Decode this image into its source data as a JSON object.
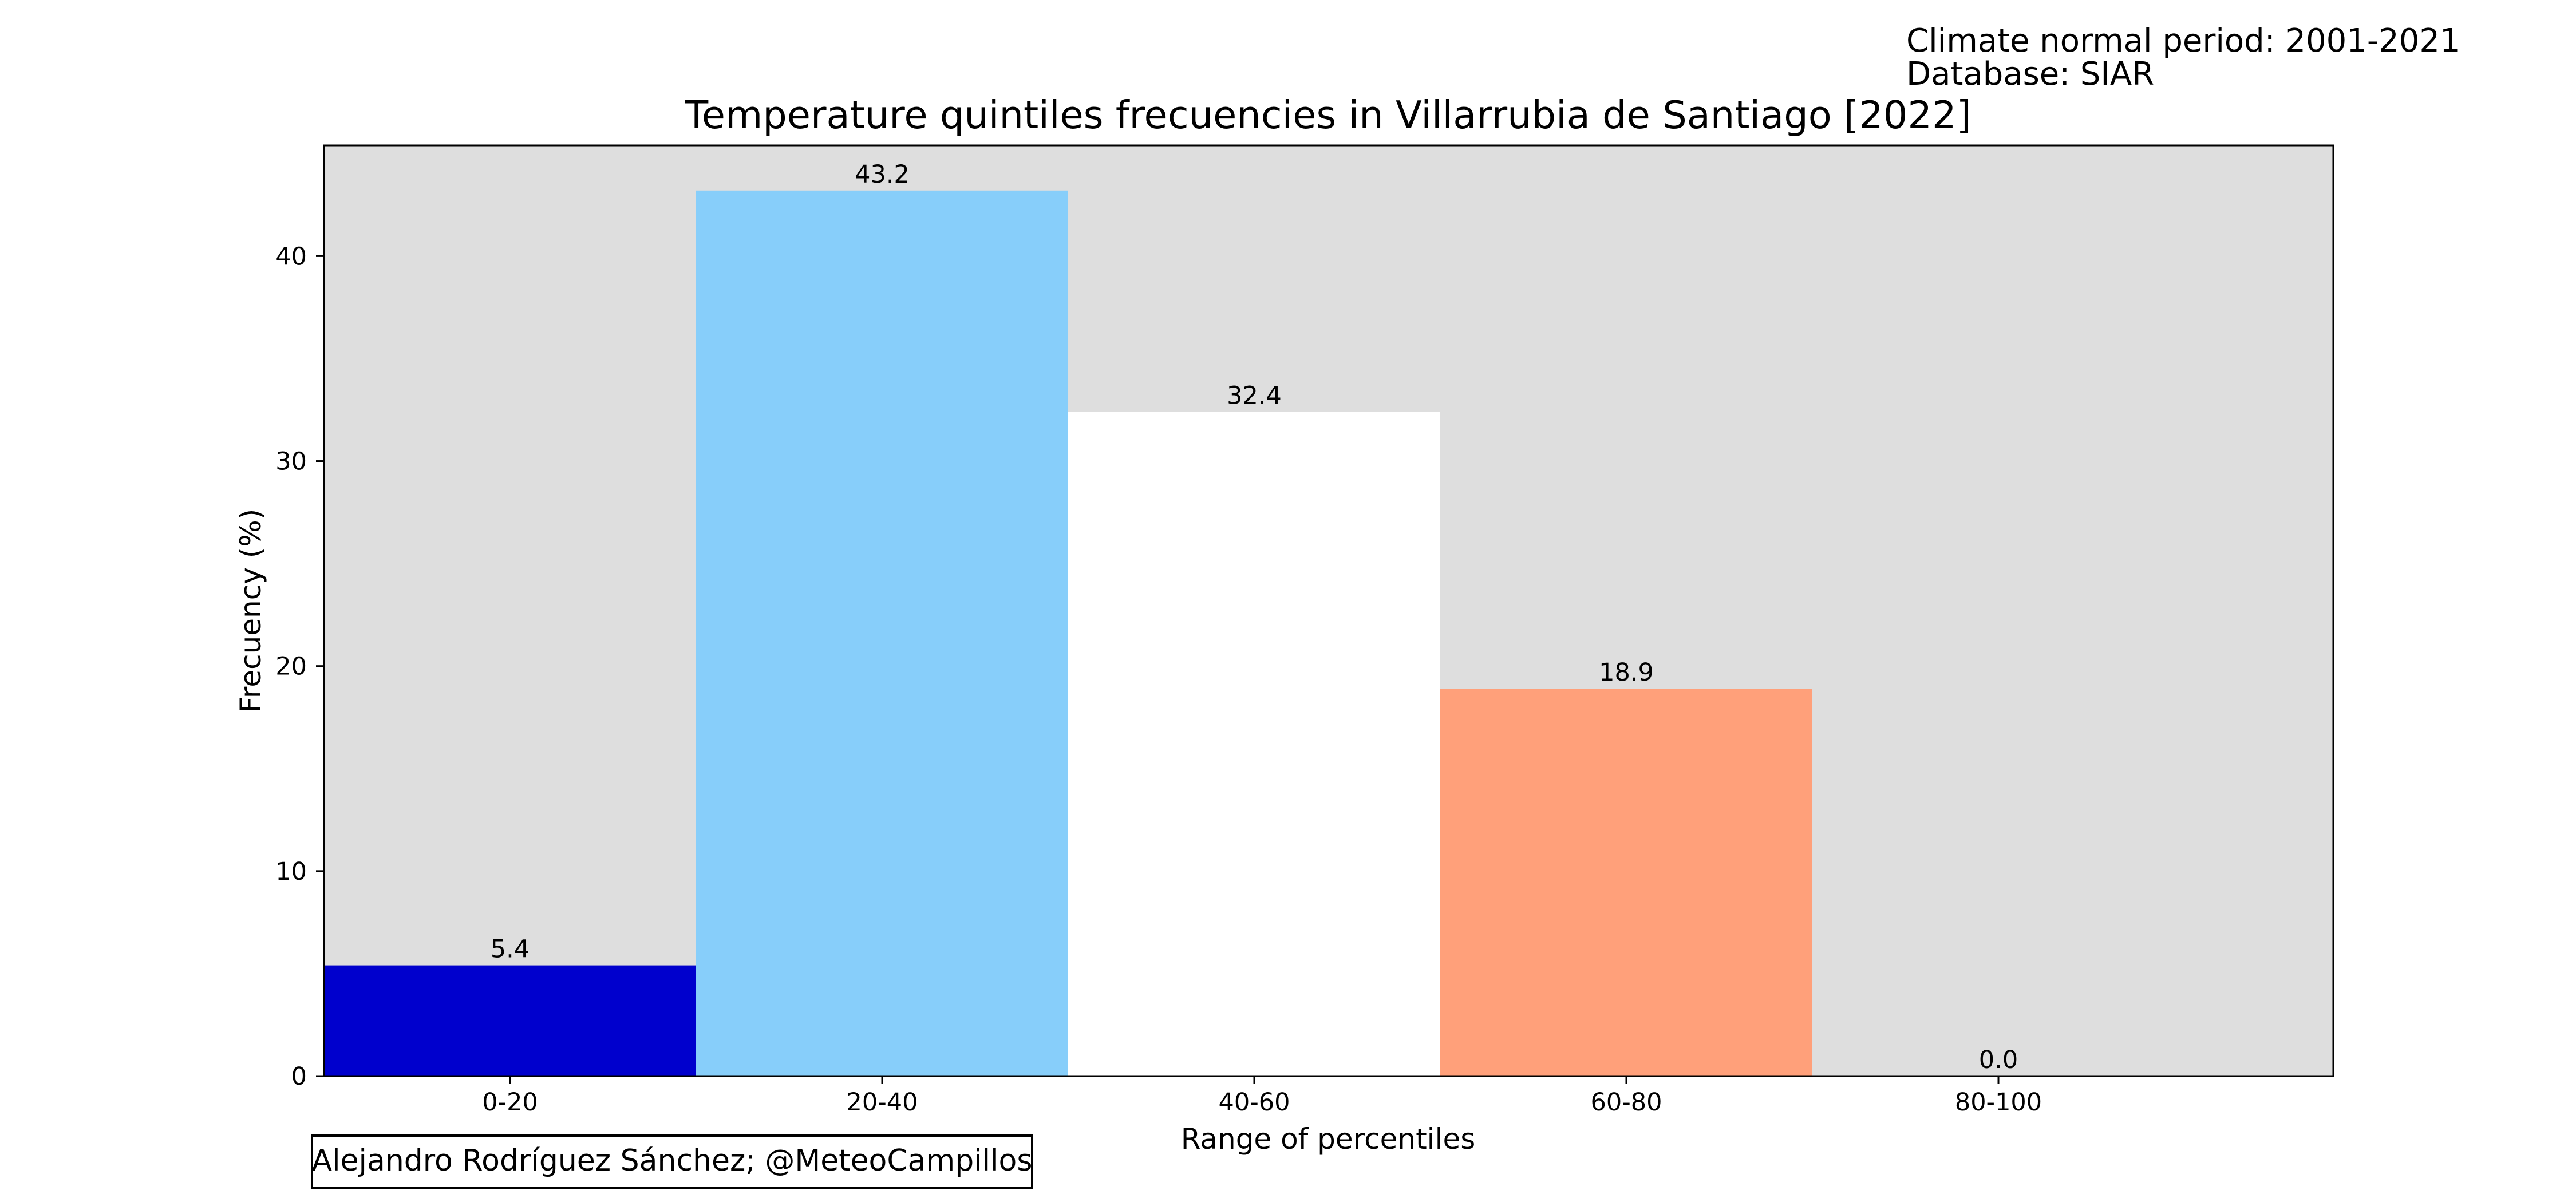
{
  "chart_data": {
    "type": "bar",
    "title": "Temperature quintiles frecuencies in Villarrubia de Santiago [2022]",
    "xlabel": "Range of percentiles",
    "ylabel": "Frecuency (%)",
    "categories": [
      "0-20",
      "20-40",
      "40-60",
      "60-80",
      "80-100"
    ],
    "values": [
      5.4,
      43.2,
      32.4,
      18.9,
      0.0
    ],
    "value_labels": [
      "5.4",
      "43.2",
      "32.4",
      "18.9",
      "0.0"
    ],
    "bar_colors": [
      "#0000cd",
      "#87cefa",
      "#ffffff",
      "#ffa07a",
      "#ff6347"
    ],
    "ylim": [
      0,
      45.4
    ],
    "yticks": [
      0,
      10,
      20,
      30,
      40
    ],
    "ytick_labels": [
      "0",
      "10",
      "20",
      "30",
      "40"
    ],
    "grid": false,
    "legend": "none",
    "plot_background": "#dedede"
  },
  "annotations": {
    "climate_period": "Climate normal period: 2001-2021",
    "database": "Database: SIAR",
    "credit": "Alejandro Rodríguez Sánchez; @MeteoCampillos"
  }
}
